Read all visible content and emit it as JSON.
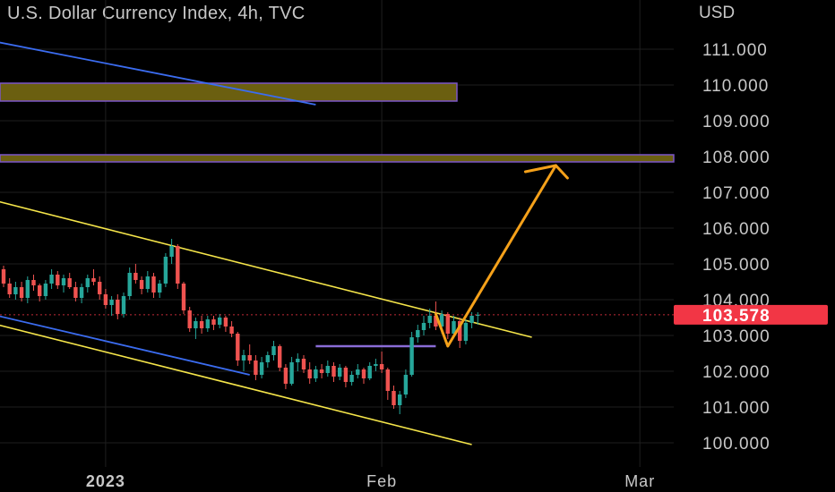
{
  "header": {
    "title": "U.S. Dollar Currency Index, 4h, TVC",
    "currency": "USD"
  },
  "chart_data": {
    "type": "candlestick",
    "title": "U.S. Dollar Currency Index, 4h, TVC",
    "ylabel": "USD",
    "y_ticks": [
      "111.000",
      "110.000",
      "109.000",
      "108.000",
      "107.000",
      "106.000",
      "105.000",
      "104.000",
      "103.000",
      "102.000",
      "101.000",
      "100.000"
    ],
    "y_tick_values": [
      111,
      110,
      109,
      108,
      107,
      106,
      105,
      104,
      103,
      102,
      101,
      100
    ],
    "x_ticks": [
      "2023",
      "Feb",
      "Mar"
    ],
    "current_price": "103.578",
    "current_price_value": 103.578,
    "grid": true,
    "colors": {
      "up": "#26a69a",
      "down": "#ef5350",
      "channel": "#f5e54a",
      "trendline": "#3b6cf0",
      "projection": "#f5a11a",
      "zone_fill": "#6b5f10",
      "zone_border": "#7a55c8",
      "price_badge": "#f23645",
      "support_line": "#8a6cd6"
    },
    "candles_ohlc": [
      [
        104.85,
        104.95,
        104.35,
        104.45
      ],
      [
        104.45,
        104.6,
        104.05,
        104.15
      ],
      [
        104.15,
        104.5,
        104.0,
        104.35
      ],
      [
        104.35,
        104.5,
        103.95,
        104.05
      ],
      [
        104.05,
        104.65,
        103.9,
        104.55
      ],
      [
        104.55,
        104.7,
        104.25,
        104.4
      ],
      [
        104.4,
        104.45,
        103.95,
        104.1
      ],
      [
        104.1,
        104.55,
        104.0,
        104.45
      ],
      [
        104.45,
        104.85,
        104.3,
        104.7
      ],
      [
        104.7,
        104.8,
        104.3,
        104.4
      ],
      [
        104.4,
        104.7,
        104.2,
        104.6
      ],
      [
        104.6,
        104.75,
        104.3,
        104.35
      ],
      [
        104.35,
        104.5,
        103.95,
        104.05
      ],
      [
        104.05,
        104.45,
        103.9,
        104.35
      ],
      [
        104.35,
        104.7,
        104.2,
        104.6
      ],
      [
        104.6,
        104.85,
        104.4,
        104.5
      ],
      [
        104.5,
        104.65,
        104.0,
        104.15
      ],
      [
        104.15,
        104.3,
        103.75,
        103.85
      ],
      [
        103.85,
        104.1,
        103.55,
        104.0
      ],
      [
        104.0,
        104.15,
        103.45,
        103.6
      ],
      [
        103.6,
        104.2,
        103.5,
        104.1
      ],
      [
        104.1,
        104.9,
        104.0,
        104.75
      ],
      [
        104.75,
        105.0,
        104.45,
        104.55
      ],
      [
        104.55,
        104.65,
        104.15,
        104.3
      ],
      [
        104.3,
        104.8,
        104.2,
        104.65
      ],
      [
        104.65,
        104.75,
        104.05,
        104.2
      ],
      [
        104.2,
        104.55,
        104.05,
        104.45
      ],
      [
        104.45,
        105.3,
        104.35,
        105.2
      ],
      [
        105.2,
        105.7,
        105.0,
        105.5
      ],
      [
        105.5,
        105.55,
        104.3,
        104.45
      ],
      [
        104.45,
        104.5,
        103.6,
        103.7
      ],
      [
        103.7,
        103.8,
        103.1,
        103.2
      ],
      [
        103.2,
        103.5,
        102.9,
        103.4
      ],
      [
        103.4,
        103.55,
        103.05,
        103.2
      ],
      [
        103.2,
        103.55,
        103.1,
        103.45
      ],
      [
        103.45,
        103.55,
        103.15,
        103.3
      ],
      [
        103.3,
        103.6,
        103.2,
        103.5
      ],
      [
        103.5,
        103.55,
        103.1,
        103.25
      ],
      [
        103.25,
        103.4,
        102.95,
        103.05
      ],
      [
        103.05,
        103.1,
        102.15,
        102.3
      ],
      [
        102.3,
        102.6,
        102.0,
        102.45
      ],
      [
        102.45,
        102.75,
        102.2,
        102.3
      ],
      [
        102.3,
        102.45,
        101.75,
        101.9
      ],
      [
        101.9,
        102.4,
        101.8,
        102.25
      ],
      [
        102.25,
        102.55,
        102.1,
        102.45
      ],
      [
        102.45,
        102.85,
        102.3,
        102.7
      ],
      [
        102.7,
        102.75,
        102.0,
        102.1
      ],
      [
        102.1,
        102.2,
        101.5,
        101.65
      ],
      [
        101.65,
        102.4,
        101.6,
        102.25
      ],
      [
        102.25,
        102.5,
        102.0,
        102.35
      ],
      [
        102.35,
        102.45,
        101.95,
        102.05
      ],
      [
        102.05,
        102.25,
        101.65,
        101.8
      ],
      [
        101.8,
        102.15,
        101.7,
        102.05
      ],
      [
        102.05,
        102.2,
        101.8,
        101.95
      ],
      [
        101.95,
        102.3,
        101.85,
        102.15
      ],
      [
        102.15,
        102.25,
        101.7,
        101.85
      ],
      [
        101.85,
        102.2,
        101.75,
        102.1
      ],
      [
        102.1,
        102.15,
        101.55,
        101.7
      ],
      [
        101.7,
        102.0,
        101.6,
        101.9
      ],
      [
        101.9,
        102.2,
        101.8,
        102.05
      ],
      [
        102.05,
        102.1,
        101.65,
        101.8
      ],
      [
        101.8,
        102.25,
        101.75,
        102.15
      ],
      [
        102.15,
        102.35,
        102.0,
        102.2
      ],
      [
        102.2,
        102.55,
        101.95,
        102.05
      ],
      [
        102.05,
        102.1,
        101.2,
        101.45
      ],
      [
        101.45,
        101.6,
        100.95,
        101.05
      ],
      [
        101.05,
        101.45,
        100.8,
        101.35
      ],
      [
        101.35,
        102.05,
        101.25,
        101.9
      ],
      [
        101.9,
        103.1,
        101.85,
        102.95
      ],
      [
        102.95,
        103.3,
        102.8,
        103.15
      ],
      [
        103.15,
        103.55,
        103.0,
        103.35
      ],
      [
        103.35,
        103.75,
        103.2,
        103.55
      ],
      [
        103.55,
        103.95,
        103.15,
        103.25
      ],
      [
        103.25,
        103.7,
        103.05,
        103.6
      ],
      [
        103.6,
        103.65,
        102.9,
        103.05
      ],
      [
        103.05,
        103.55,
        102.95,
        103.4
      ],
      [
        103.4,
        103.5,
        102.65,
        102.85
      ],
      [
        102.85,
        103.45,
        102.75,
        103.35
      ],
      [
        103.35,
        103.65,
        103.2,
        103.55
      ],
      [
        103.55,
        103.65,
        103.3,
        103.58
      ]
    ],
    "channel_upper": [
      [
        -1,
        106.75
      ],
      [
        88,
        102.95
      ]
    ],
    "channel_lower": [
      [
        -1,
        103.3
      ],
      [
        78,
        99.95
      ]
    ],
    "trendline_upper": [
      [
        -1,
        111.2
      ],
      [
        52,
        109.45
      ]
    ],
    "trendline_lower": [
      [
        -1,
        103.55
      ],
      [
        41,
        101.9
      ]
    ],
    "zones": [
      [
        109.55,
        110.05
      ],
      [
        107.85,
        108.05
      ]
    ],
    "support_line": [
      [
        52,
        102.7
      ],
      [
        72,
        102.7
      ]
    ],
    "projection_path": [
      [
        72,
        103.6
      ],
      [
        74,
        102.7
      ],
      [
        92,
        107.75
      ]
    ]
  }
}
